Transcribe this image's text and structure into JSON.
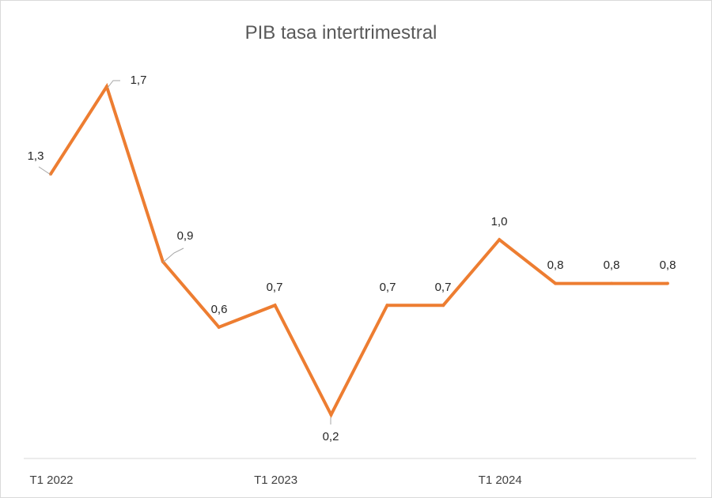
{
  "chart_data": {
    "type": "line",
    "title": "PIB tasa intertrimestral",
    "categories": [
      "T1 2022",
      "",
      "",
      "",
      "T1 2023",
      "",
      "",
      "",
      "T1 2024",
      "",
      "",
      ""
    ],
    "x_tick_labels": [
      "T1 2022",
      "T1 2023",
      "T1 2024"
    ],
    "data_labels": [
      "1,3",
      "1,7",
      "0,9",
      "0,6",
      "0,7",
      "0,2",
      "0,7",
      "0,7",
      "1,0",
      "0,8",
      "0,8",
      "0,8"
    ],
    "series": [
      {
        "values": [
          1.3,
          1.7,
          0.9,
          0.6,
          0.7,
          0.2,
          0.7,
          0.7,
          1.0,
          0.8,
          0.8,
          0.8
        ]
      }
    ],
    "colors": {
      "line": "#ED7D31",
      "axis": "#d9d9d9",
      "leader": "#a6a6a6"
    },
    "grid": false,
    "legend": "none"
  }
}
